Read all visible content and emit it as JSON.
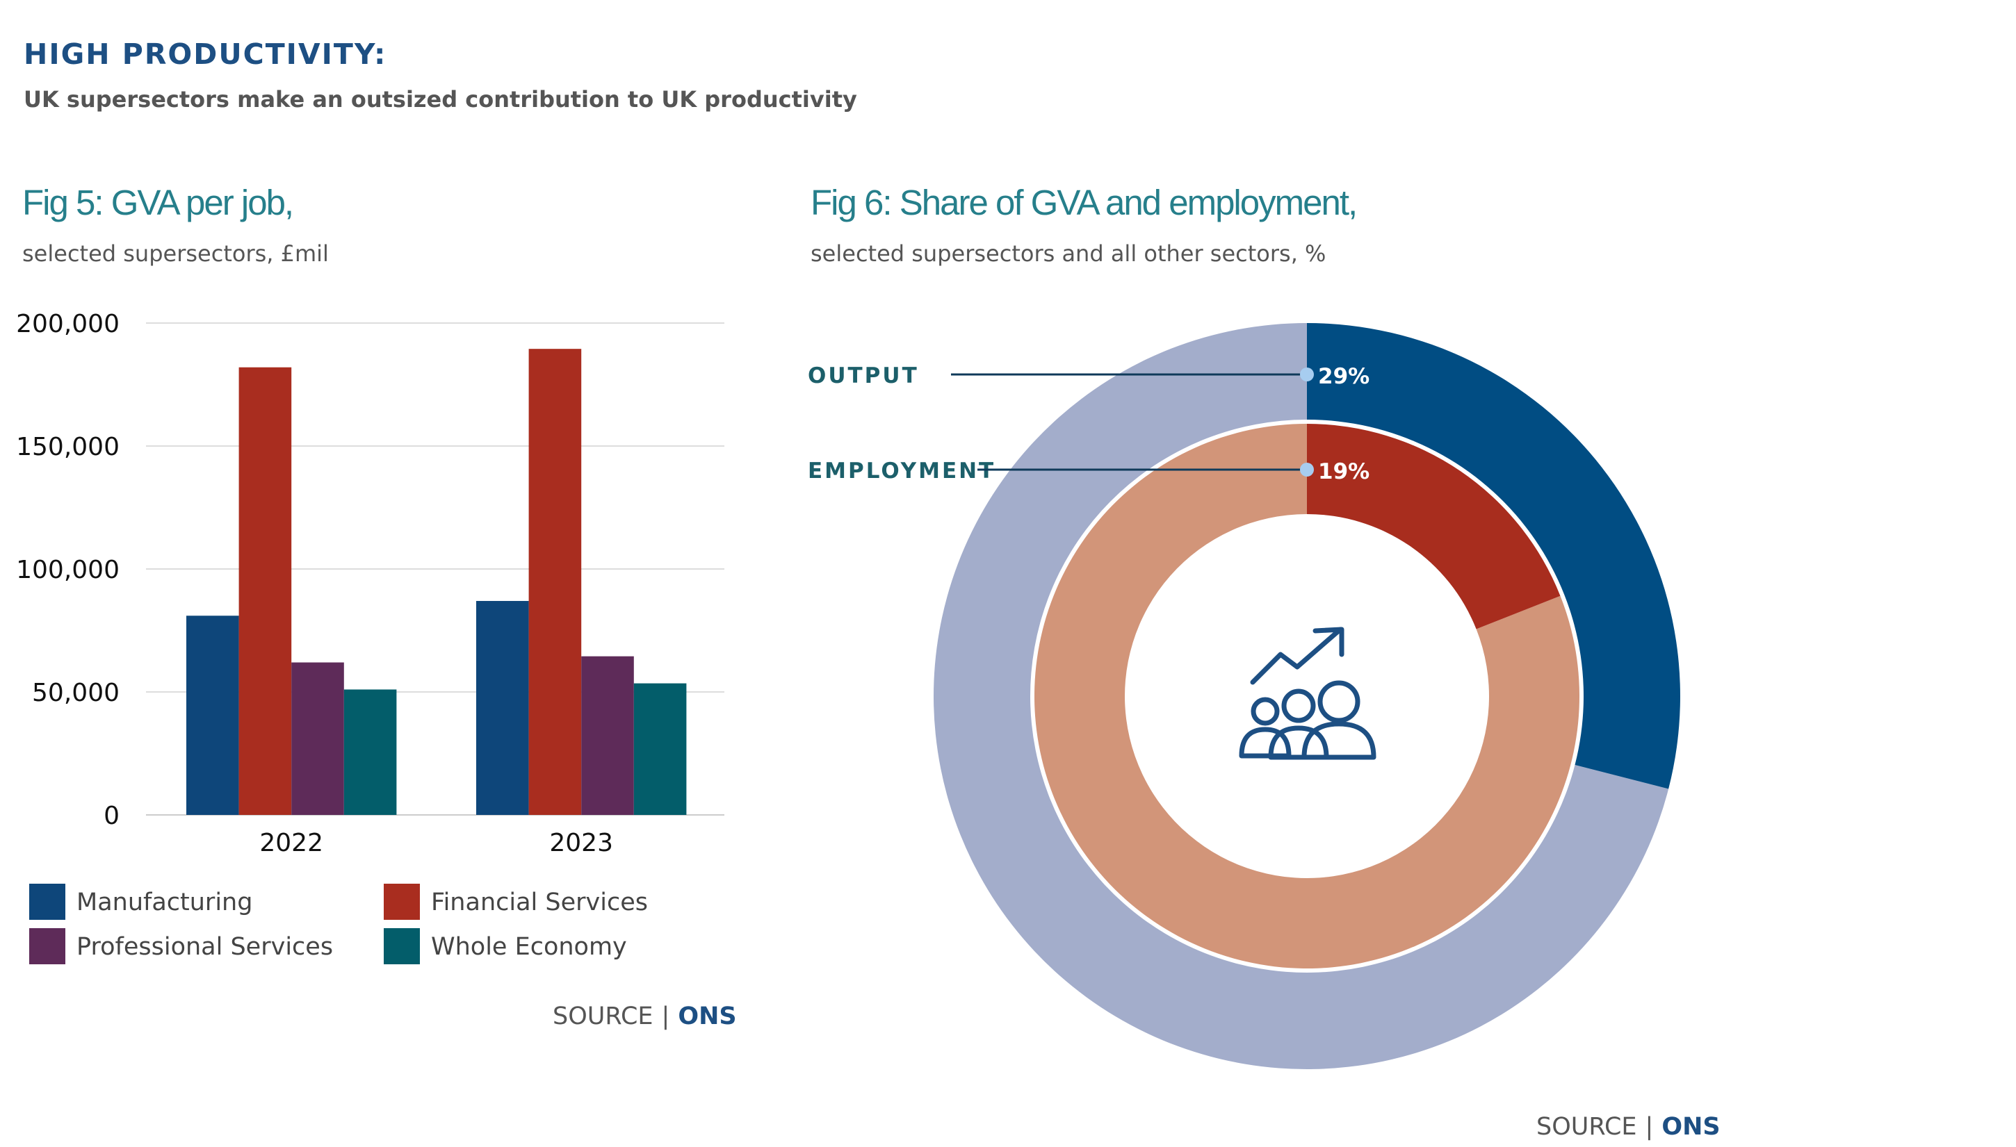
{
  "page": {
    "headline": "HIGH PRODUCTIVITY:",
    "subheadline": "UK supersectors make an outsized contribution to UK productivity"
  },
  "colors": {
    "manufacturing": "#0e467a",
    "financial": "#a92d1f",
    "professional": "#5e2b59",
    "whole_economy": "#035d6a",
    "output_share": "#014d83",
    "output_rest": "#a3adcb",
    "employment_share": "#a82d1e",
    "employment_rest": "#d29579",
    "leader_dot": "#a7cdf0",
    "leader_line": "#0f3a5a",
    "annotation": "#1c5f6a",
    "icon": "#1d4f83"
  },
  "chart_data": [
    {
      "type": "bar",
      "title": "Fig 5: GVA per job,",
      "subtitle": "selected supersectors, £mil",
      "categories": [
        "2022",
        "2023"
      ],
      "series": [
        {
          "name": "Manufacturing",
          "values": [
            81000,
            87000
          ]
        },
        {
          "name": "Financial Services",
          "values": [
            182000,
            189500
          ]
        },
        {
          "name": "Professional Services",
          "values": [
            62000,
            64500
          ]
        },
        {
          "name": "Whole Economy",
          "values": [
            51000,
            53500
          ]
        }
      ],
      "ylim": [
        0,
        200000
      ],
      "yticks": [
        0,
        50000,
        100000,
        150000,
        200000
      ],
      "ytick_labels": [
        "0",
        "50,000",
        "100,000",
        "150,000",
        "200,000"
      ],
      "grid": true,
      "legend": "bottom",
      "xlabel": "",
      "ylabel": "",
      "source_label": "SOURCE",
      "source_org": "ONS"
    },
    {
      "type": "pie",
      "title": "Fig 6: Share of GVA and employment,",
      "subtitle": "selected supersectors and all other sectors, %",
      "rings": [
        {
          "name": "OUTPUT",
          "share": 29,
          "label": "29%"
        },
        {
          "name": "EMPLOYMENT",
          "share": 19,
          "label": "19%"
        }
      ],
      "source_label": "SOURCE",
      "source_org": "ONS"
    }
  ]
}
